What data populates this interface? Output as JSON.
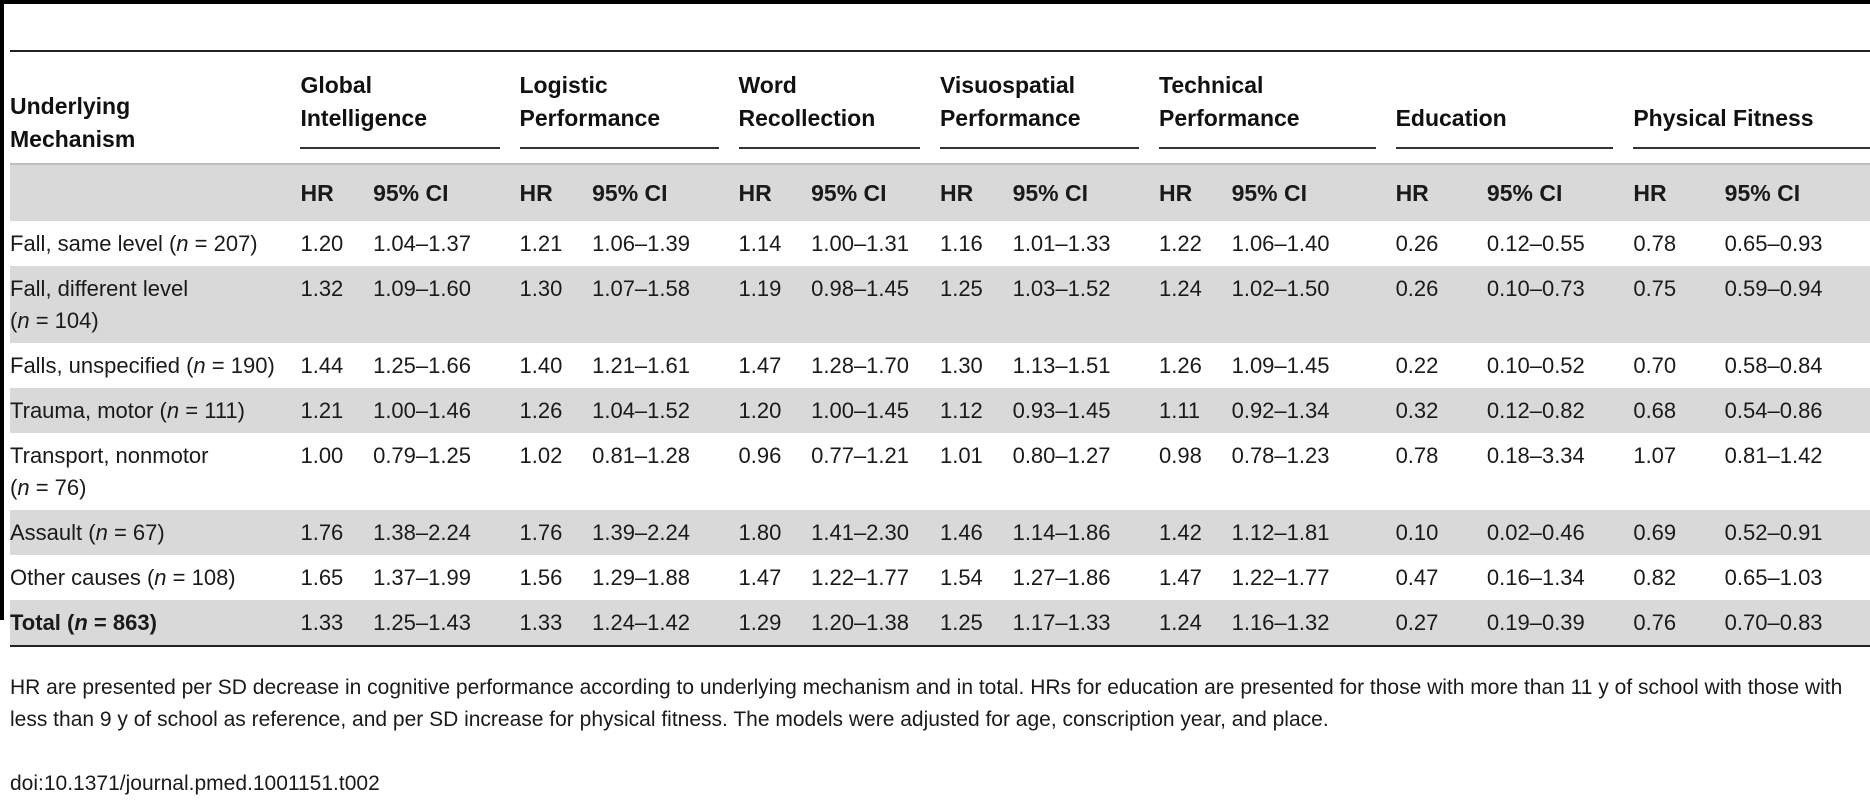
{
  "table": {
    "header": {
      "mechanism": "Underlying Mechanism",
      "groups": [
        {
          "line1": "Global",
          "line2": "Intelligence"
        },
        {
          "line1": "Logistic",
          "line2": "Performance"
        },
        {
          "line1": "Word",
          "line2": "Recollection"
        },
        {
          "line1": "Visuospatial",
          "line2": "Performance"
        },
        {
          "line1": "Technical",
          "line2": "Performance"
        },
        {
          "line1": "",
          "line2": "Education"
        },
        {
          "line1": "",
          "line2": "Physical Fitness"
        }
      ],
      "hr_label": "HR",
      "ci_label": "95% CI"
    },
    "rows": [
      {
        "label": "Fall, same level (",
        "n": "n",
        "count": " = 207)",
        "values": [
          "1.20",
          "1.04–1.37",
          "1.21",
          "1.06–1.39",
          "1.14",
          "1.00–1.31",
          "1.16",
          "1.01–1.33",
          "1.22",
          "1.06–1.40",
          "0.26",
          "0.12–0.55",
          "0.78",
          "0.65–0.93"
        ]
      },
      {
        "label": "Fall, different level",
        "label2_pre": "(",
        "n": "n",
        "count": " = 104)",
        "values": [
          "1.32",
          "1.09–1.60",
          "1.30",
          "1.07–1.58",
          "1.19",
          "0.98–1.45",
          "1.25",
          "1.03–1.52",
          "1.24",
          "1.02–1.50",
          "0.26",
          "0.10–0.73",
          "0.75",
          "0.59–0.94"
        ]
      },
      {
        "label": "Falls, unspecified (",
        "n": "n",
        "count": " = 190)",
        "values": [
          "1.44",
          "1.25–1.66",
          "1.40",
          "1.21–1.61",
          "1.47",
          "1.28–1.70",
          "1.30",
          "1.13–1.51",
          "1.26",
          "1.09–1.45",
          "0.22",
          "0.10–0.52",
          "0.70",
          "0.58–0.84"
        ]
      },
      {
        "label": "Trauma, motor (",
        "n": "n",
        "count": " = 111)",
        "values": [
          "1.21",
          "1.00–1.46",
          "1.26",
          "1.04–1.52",
          "1.20",
          "1.00–1.45",
          "1.12",
          "0.93–1.45",
          "1.11",
          "0.92–1.34",
          "0.32",
          "0.12–0.82",
          "0.68",
          "0.54–0.86"
        ]
      },
      {
        "label": "Transport, nonmotor",
        "label2_pre": "(",
        "n": "n",
        "count": " = 76)",
        "values": [
          "1.00",
          "0.79–1.25",
          "1.02",
          "0.81–1.28",
          "0.96",
          "0.77–1.21",
          "1.01",
          "0.80–1.27",
          "0.98",
          "0.78–1.23",
          "0.78",
          "0.18–3.34",
          "1.07",
          "0.81–1.42"
        ]
      },
      {
        "label": "Assault (",
        "n": "n",
        "count": " = 67)",
        "values": [
          "1.76",
          "1.38–2.24",
          "1.76",
          "1.39–2.24",
          "1.80",
          "1.41–2.30",
          "1.46",
          "1.14–1.86",
          "1.42",
          "1.12–1.81",
          "0.10",
          "0.02–0.46",
          "0.69",
          "0.52–0.91"
        ]
      },
      {
        "label": "Other causes (",
        "n": "n",
        "count": " = 108)",
        "values": [
          "1.65",
          "1.37–1.99",
          "1.56",
          "1.29–1.88",
          "1.47",
          "1.22–1.77",
          "1.54",
          "1.27–1.86",
          "1.47",
          "1.22–1.77",
          "0.47",
          "0.16–1.34",
          "0.82",
          "0.65–1.03"
        ]
      },
      {
        "label": "Total (",
        "n": "n",
        "count": " = 863)",
        "values": [
          "1.33",
          "1.25–1.43",
          "1.33",
          "1.24–1.42",
          "1.29",
          "1.20–1.38",
          "1.25",
          "1.17–1.33",
          "1.24",
          "1.16–1.32",
          "0.27",
          "0.19–0.39",
          "0.76",
          "0.70–0.83"
        ]
      }
    ]
  },
  "footnote": "HR are presented per SD decrease in cognitive performance according to underlying mechanism and in total. HRs for education are presented for those with more than 11 y of school with those with less than 9 y of school as reference, and per SD increase for physical fitness. The models were adjusted for age, conscription year, and place.",
  "doi": "doi:10.1371/journal.pmed.1001151.t002",
  "colors": {
    "row_shade": "#d9d9d9",
    "rule": "#222222"
  }
}
